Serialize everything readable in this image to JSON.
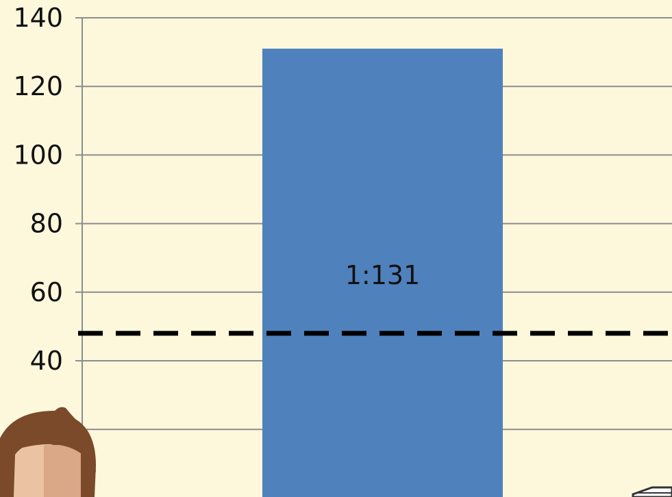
{
  "chart_data": {
    "type": "bar",
    "title": "",
    "xlabel": "",
    "ylabel": "",
    "ylim": [
      0,
      140
    ],
    "yticks": [
      40,
      60,
      80,
      100,
      120,
      140
    ],
    "grid": true,
    "categories": [
      ""
    ],
    "series": [
      {
        "values": [
          131
        ],
        "color": "#4f81bd"
      }
    ],
    "data_labels": [
      "1:131"
    ],
    "reference_line": {
      "value": 48,
      "style": "dashed",
      "color": "#000000"
    }
  },
  "colors": {
    "background": "#fdf8dc",
    "gridline": "#8c8c8c",
    "bar": "#4f81bd",
    "reference_line": "#000000"
  },
  "icons": [
    "person-avatar-icon",
    "book-stack-icon"
  ]
}
